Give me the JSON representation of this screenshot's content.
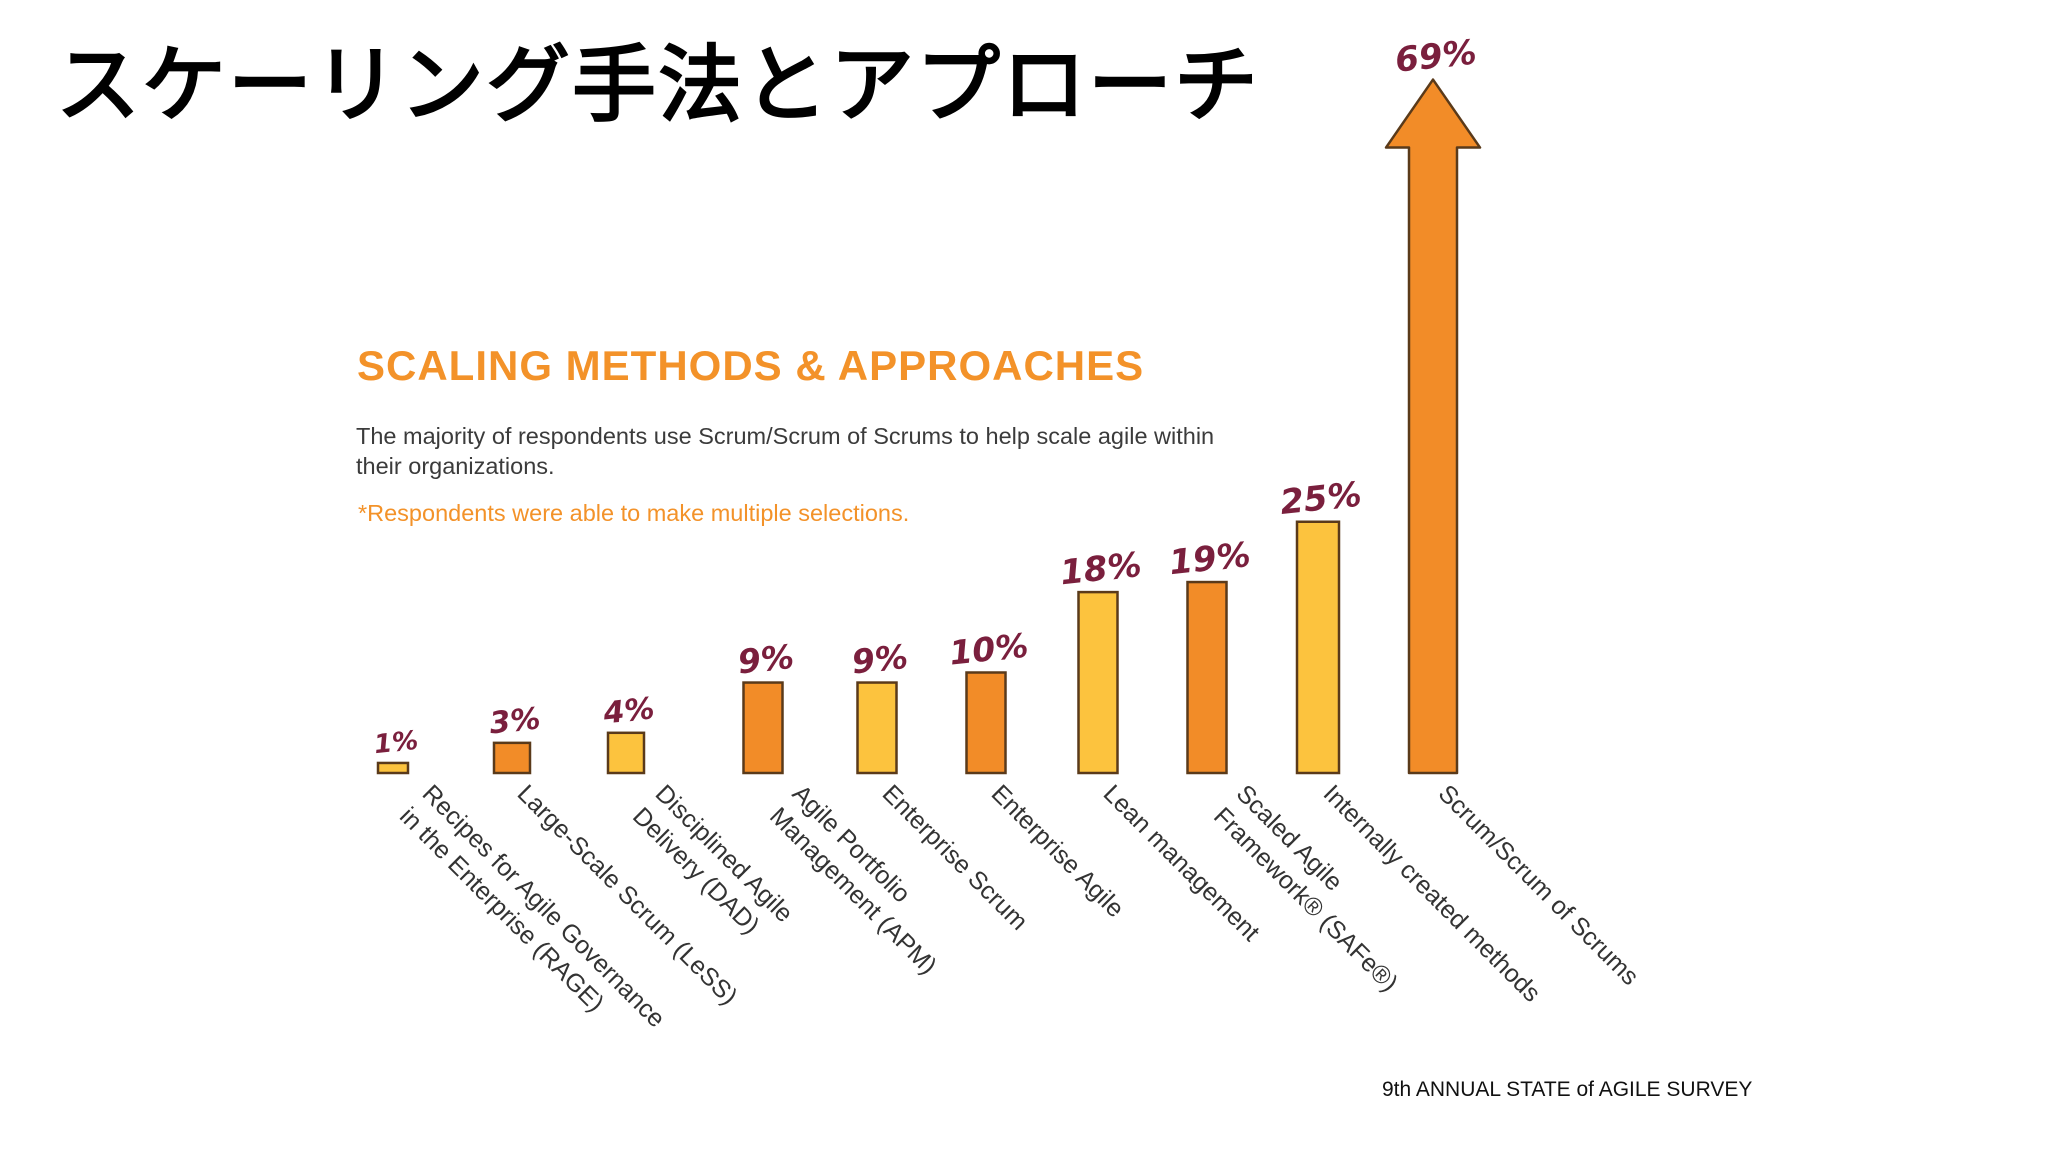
{
  "slide": {
    "title": "スケーリング手法とアプローチ",
    "source": "9th ANNUAL STATE of AGILE SURVEY"
  },
  "chart_data": {
    "type": "bar",
    "title": "SCALING METHODS & APPROACHES",
    "subtitle": "The majority of respondents use Scrum/Scrum of Scrums to help scale agile within their organizations.",
    "note": "*Respondents were able to make multiple selections.",
    "categories": [
      [
        "Recipes for Agile Governance",
        "in the Enterprise (RAGE)"
      ],
      [
        "Large-Scale Scrum (LeSS)"
      ],
      [
        "Disciplined Agile",
        "Delivery (DAD)"
      ],
      [
        "Agile Portfolio",
        "Management (APM)"
      ],
      [
        "Enterprise Scrum"
      ],
      [
        "Enterprise Agile"
      ],
      [
        "Lean management"
      ],
      [
        "Scaled Agile",
        "Framework® (SAFe®)"
      ],
      [
        "Internally created methods"
      ],
      [
        "Scrum/Scrum of Scrums"
      ]
    ],
    "values": [
      1,
      3,
      4,
      9,
      9,
      10,
      18,
      19,
      25,
      69
    ],
    "value_labels": [
      "1%",
      "3%",
      "4%",
      "9%",
      "9%",
      "10%",
      "18%",
      "19%",
      "25%",
      "69%"
    ],
    "unit": "%",
    "highlight_arrow_last": true,
    "colors": {
      "yellow": "#FCC33E",
      "orange": "#F28C28",
      "outline": "#5a3a1a",
      "value_label": "#7A1F3D"
    },
    "bar_colors": [
      "yellow",
      "orange",
      "yellow",
      "orange",
      "yellow",
      "orange",
      "yellow",
      "orange",
      "yellow",
      "orange"
    ]
  }
}
